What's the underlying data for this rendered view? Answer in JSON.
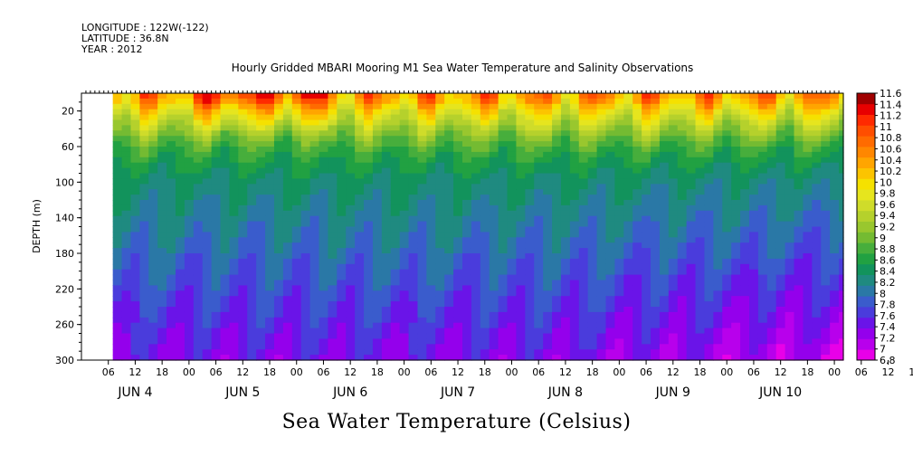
{
  "header": {
    "longitude": "LONGITUDE : 122W(-122)",
    "latitude": "LATITUDE : 36.8N",
    "year": "YEAR : 2012"
  },
  "chart_data": {
    "type": "heatmap",
    "title": "Hourly Gridded MBARI Mooring M1 Sea Water Temperature and Salinity Observations",
    "xlabel": "Sea Water Temperature (Celsius)",
    "ylabel": "DEPTH (m)",
    "ylim": [
      300,
      0
    ],
    "y_ticks": [
      20,
      60,
      100,
      140,
      180,
      220,
      260,
      300
    ],
    "x_hours_range": [
      0,
      170
    ],
    "x_tick_labels": [
      "06",
      "12",
      "18",
      "00",
      "06",
      "12",
      "18",
      "00",
      "06",
      "12",
      "18",
      "00",
      "06",
      "12",
      "18",
      "00",
      "06",
      "12",
      "18",
      "00",
      "06",
      "12",
      "18",
      "00",
      "06",
      "12",
      "18",
      "00",
      "06",
      "12",
      "18",
      "00"
    ],
    "day_labels": [
      "JUN  4",
      "JUN  5",
      "JUN  6",
      "JUN  7",
      "JUN  8",
      "JUN  9",
      "JUN 10"
    ],
    "data_start_hour": 7,
    "colorbar": {
      "levels": [
        6.8,
        7,
        7.2,
        7.4,
        7.6,
        7.8,
        8,
        8.2,
        8.4,
        8.6,
        8.8,
        9,
        9.2,
        9.4,
        9.6,
        9.8,
        10,
        10.2,
        10.4,
        10.6,
        10.8,
        11,
        11.2,
        11.4,
        11.6
      ],
      "colors": [
        "#e800e8",
        "#b800ec",
        "#9400ec",
        "#6a14e8",
        "#4a3cdc",
        "#3a5ccc",
        "#2a78a6",
        "#1f8a80",
        "#12935c",
        "#21a142",
        "#47ae3c",
        "#74bb32",
        "#99c72e",
        "#b5d12c",
        "#cfdc2a",
        "#e6e51e",
        "#f5e100",
        "#fcc400",
        "#ffa500",
        "#ff8700",
        "#ff6b00",
        "#ff4e00",
        "#ff2a00",
        "#e80000",
        "#a00000"
      ]
    },
    "depth_profile_temperature": [
      {
        "depth": 5,
        "value": 10.6
      },
      {
        "depth": 20,
        "value": 10.0
      },
      {
        "depth": 40,
        "value": 9.4
      },
      {
        "depth": 60,
        "value": 8.9
      },
      {
        "depth": 80,
        "value": 8.6
      },
      {
        "depth": 100,
        "value": 8.4
      },
      {
        "depth": 140,
        "value": 8.2
      },
      {
        "depth": 180,
        "value": 8.0
      },
      {
        "depth": 220,
        "value": 7.8
      },
      {
        "depth": 260,
        "value": 7.6
      },
      {
        "depth": 300,
        "value": 7.4
      }
    ]
  }
}
